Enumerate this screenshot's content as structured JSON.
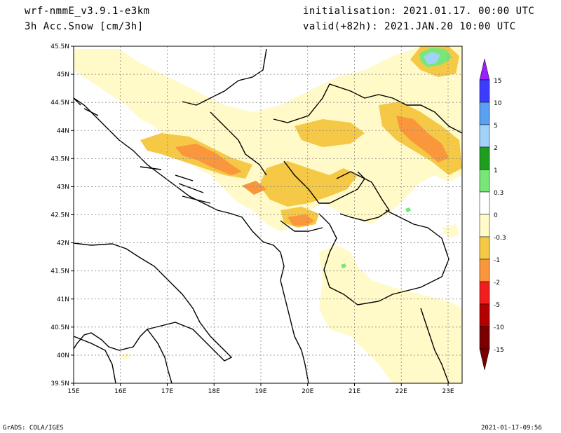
{
  "header": {
    "model": "wrf-nmmE_v3.9.1-e3km",
    "field": "3h Acc.Snow [cm/3h]",
    "init": "initialisation: 2021.01.17.  00:00 UTC",
    "valid": "valid(+82h): 2021.JAN.20 10:00 UTC"
  },
  "footer": {
    "left": "GrADS: COLA/IGES",
    "right": "2021-01-17-09:56"
  },
  "axes": {
    "lat_labels": [
      "45.5N",
      "45N",
      "44.5N",
      "44N",
      "43.5N",
      "43N",
      "42.5N",
      "42N",
      "41.5N",
      "41N",
      "40.5N",
      "40N",
      "39.5N"
    ],
    "lon_labels": [
      "15E",
      "16E",
      "17E",
      "18E",
      "19E",
      "20E",
      "21E",
      "22E",
      "23E"
    ],
    "lat_range": [
      39.5,
      45.5
    ],
    "lon_range": [
      15,
      23.3
    ]
  },
  "legend": {
    "labels": [
      "15",
      "10",
      "5",
      "2",
      "1",
      "0.3",
      "0",
      "-0.3",
      "-1",
      "-2",
      "-5",
      "-10",
      "-15"
    ],
    "colors": [
      "#9a1eff",
      "#3c3cff",
      "#5aa0f0",
      "#a0d2fa",
      "#1e9e1e",
      "#78e678",
      "#ffffff",
      "#fffac8",
      "#f5c846",
      "#fa963c",
      "#f01e1e",
      "#b40000",
      "#7a0000"
    ],
    "top_arrow_color": "#9a1eff",
    "bottom_arrow_color": "#7a0000"
  }
}
